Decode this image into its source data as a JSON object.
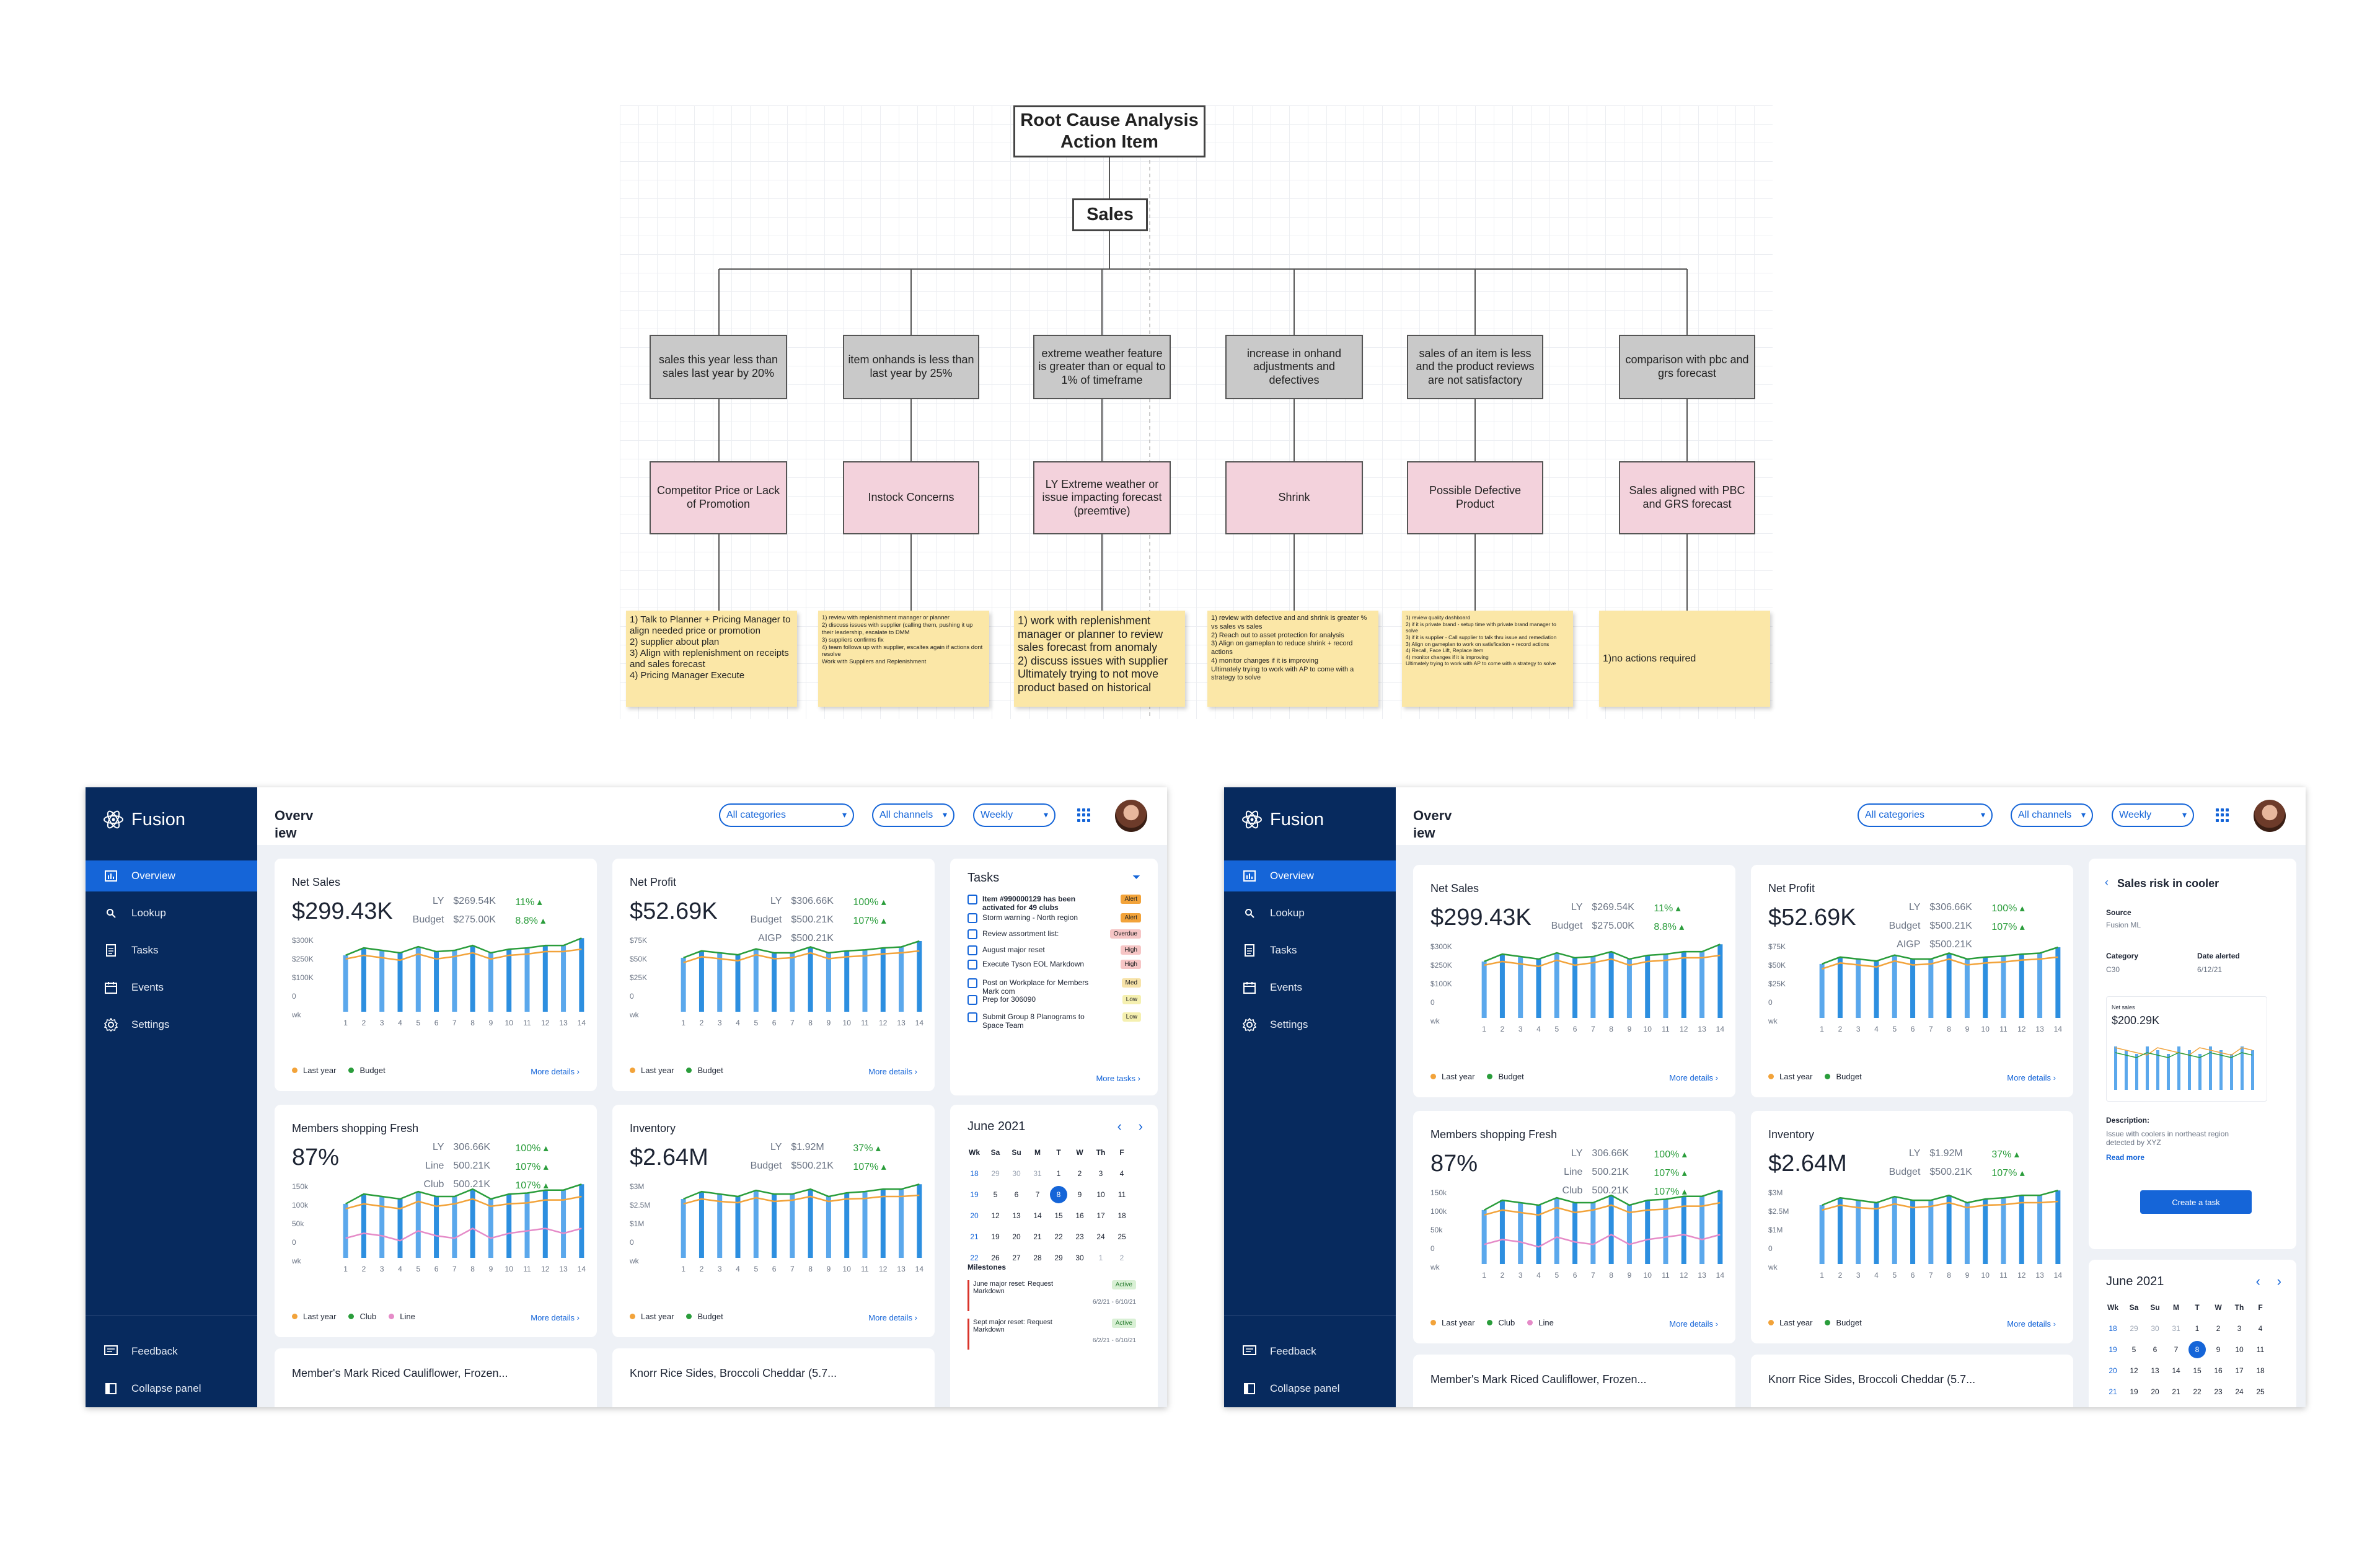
{
  "diagram": {
    "root": "Root Cause Analysis\nAction Item",
    "sales": "Sales",
    "causes": [
      "sales this year less than sales last year by 20%",
      "item onhands is less than last year by 25%",
      "extreme weather feature is greater than or equal to 1% of timeframe",
      "increase in onhand adjustments and defectives",
      "sales of an item is less and the product reviews are not satisfactory",
      "comparison with pbc and grs forecast"
    ],
    "findings": [
      "Competitor Price or Lack of Promotion",
      "Instock Concerns",
      "LY Extreme weather or issue impacting forecast (preemtive)",
      "Shrink",
      "Possible Defective Product",
      "Sales aligned with PBC and GRS forecast"
    ],
    "actions": [
      "1) Talk to Planner + Pricing Manager  to align needed price or promotion\n2) supplier about plan\n3) Align with replenishment on receipts and sales forecast\n4) Pricing Manager Execute",
      "1) review with replenishment manager or planner\n2) discuss issues with supplier (calling them, pushing it up their leadership, escalate to DMM\n3) suppliers confirms fix\n4) team follows up with supplier, escaltes again if actions dont resolve\nWork with Suppliers and Replenishment",
      "1) work with replenishment manager or planner to review sales forecast from anomaly\n2) discuss issues with supplier\nUltimately trying to not move product based on historical",
      "1) review with defective and and shrink is greater % vs sales vs sales\n2) Reach out to asset protection for analysis\n3) Align on gameplan to reduce shrink + record actions\n4) monitor changes if it is improving\nUltimately trying to work with AP to come with a strategy to solve",
      "1) review quality dashboard\n2) if it is private brand - setup time with private brand manager to solve\n3) if it is supplier - Call supplier to talk thru issue and remediation\n3) Align on gameplan to  work on satisfication + record actions\n4) Recall, Face Lift, Replace item\n4) monitor changes if it is improving\nUltimately trying to work with AP to come with a strategy to solve",
      "1)no actions required"
    ]
  },
  "app": {
    "brand": "Fusion",
    "title": "Overv iew",
    "nav": [
      "Overview",
      "Lookup",
      "Tasks",
      "Events",
      "Settings"
    ],
    "feedback": "Feedback",
    "collapse": "Collapse panel",
    "filters": [
      "All categories",
      "All channels",
      "Weekly"
    ],
    "more_details": "More details",
    "net_sales": {
      "title": "Net Sales",
      "value": "$299.43K",
      "lbl1": "LY",
      "val1": "$269.54K",
      "pct1": "11%",
      "lbl2": "Budget",
      "val2": "$275.00K",
      "pct2": "8.8%",
      "yticks": [
        "$300K",
        "$250K",
        "$100K",
        "0"
      ],
      "legend": [
        "Last year",
        "Budget"
      ]
    },
    "net_profit": {
      "title": "Net Profit",
      "value": "$52.69K",
      "lbl1": "LY",
      "val1": "$306.66K",
      "pct1": "100%",
      "lbl2": "Budget",
      "val2": "$500.21K",
      "pct2": "107%",
      "lbl3": "AIGP",
      "val3": "$500.21K",
      "yticks": [
        "$75K",
        "$50K",
        "$25K",
        "0"
      ],
      "legend": [
        "Last year",
        "Budget"
      ]
    },
    "members": {
      "title": "Members shopping Fresh",
      "value": "87%",
      "lbl1": "LY",
      "val1": "306.66K",
      "pct1": "100%",
      "lbl2": "Line",
      "val2": "500.21K",
      "pct2": "107%",
      "lbl3": "Club",
      "val3": "500.21K",
      "pct3": "107%",
      "yticks": [
        "150k",
        "100k",
        "50k",
        "0"
      ],
      "legend": [
        "Last year",
        "Club",
        "Line"
      ]
    },
    "inventory": {
      "title": "Inventory",
      "value": "$2.64M",
      "lbl1": "LY",
      "val1": "$1.92M",
      "pct1": "37%",
      "lbl2": "Budget",
      "val2": "$500.21K",
      "pct2": "107%",
      "yticks": [
        "$3M",
        "$2.5M",
        "$1M",
        "0"
      ],
      "legend": [
        "Last year",
        "Budget"
      ]
    },
    "xunit": "wk",
    "xlabels": [
      "1",
      "2",
      "3",
      "4",
      "5",
      "6",
      "7",
      "8",
      "9",
      "10",
      "11",
      "12",
      "13",
      "14"
    ],
    "products": [
      "Member's Mark Riced Cauliflower, Frozen...",
      "Knorr Rice Sides, Broccoli Cheddar (5.7..."
    ],
    "tasks": {
      "title": "Tasks",
      "more": "More tasks",
      "items": [
        {
          "text": "Item #990000129 has been activated for 49 clubs",
          "tag": "Alert",
          "color": "#f2a33a"
        },
        {
          "text": "Storm warning - North region",
          "tag": "Alert",
          "color": "#f2a33a"
        },
        {
          "text": "Review assortment list:",
          "tag": "Overdue",
          "color": "#f6c5c5"
        },
        {
          "text": "August major reset",
          "tag": "High",
          "color": "#f6c5c5"
        },
        {
          "text": "Execute Tyson EOL Markdown",
          "tag": "High",
          "color": "#f6c5c5"
        },
        {
          "text": "Post on Workplace for Members Mark com",
          "tag": "Med",
          "color": "#f7e3a9"
        },
        {
          "text": "Prep for 306090",
          "tag": "Low",
          "color": "#f5f0b0"
        },
        {
          "text": "Submit Group 8 Planograms to Space Team",
          "tag": "Low",
          "color": "#f5f0b0"
        }
      ]
    },
    "calendar": {
      "month": "June 2021",
      "headers": [
        "Wk",
        "Sa",
        "Su",
        "M",
        "T",
        "W",
        "Th",
        "F"
      ],
      "rows": [
        [
          "18",
          "29",
          "30",
          "31",
          "1",
          "2",
          "3",
          "4"
        ],
        [
          "19",
          "5",
          "6",
          "7",
          "8",
          "9",
          "10",
          "11"
        ],
        [
          "20",
          "12",
          "13",
          "14",
          "15",
          "16",
          "17",
          "18"
        ],
        [
          "21",
          "19",
          "20",
          "21",
          "22",
          "23",
          "24",
          "25"
        ],
        [
          "22",
          "26",
          "27",
          "28",
          "29",
          "30",
          "1",
          "2"
        ]
      ],
      "milestones_title": "Milestones",
      "milestones": [
        {
          "title": "June major reset: Request Markdown",
          "status": "Active",
          "dates": "6/2/21 - 6/10/21"
        },
        {
          "title": "Sept major reset: Request Markdown",
          "status": "Active",
          "dates": "6/2/21 - 6/10/21"
        }
      ]
    },
    "risk": {
      "title": "Sales risk in cooler",
      "source_label": "Source",
      "source_value": "Fusion ML",
      "category_label": "Category",
      "category_value": "C30",
      "date_label": "Date alerted",
      "date_value": "6/12/21",
      "mini_title": "Net sales",
      "mini_value": "$200.29K",
      "desc_label": "Description:",
      "desc_value": "Issue with coolers in northeast region detected by XYZ",
      "read_more": "Read more",
      "button": "Create a task"
    }
  },
  "chart_data": [
    {
      "type": "bar",
      "title": "Net Sales",
      "categories": [
        "1",
        "2",
        "3",
        "4",
        "5",
        "6",
        "7",
        "8",
        "9",
        "10",
        "11",
        "12",
        "13",
        "14"
      ],
      "series": [
        {
          "name": "Budget",
          "values": [
            230,
            260,
            250,
            240,
            265,
            245,
            250,
            270,
            240,
            255,
            260,
            270,
            270,
            300
          ]
        },
        {
          "name": "Last year",
          "values": [
            215,
            230,
            220,
            210,
            235,
            215,
            225,
            240,
            215,
            230,
            235,
            245,
            245,
            255
          ]
        }
      ],
      "ylim": [
        0,
        300
      ]
    },
    {
      "type": "bar",
      "title": "Net Profit",
      "categories": [
        "1",
        "2",
        "3",
        "4",
        "5",
        "6",
        "7",
        "8",
        "9",
        "10",
        "11",
        "12",
        "13",
        "14"
      ],
      "series": [
        {
          "name": "Budget",
          "values": [
            55,
            62,
            60,
            58,
            64,
            60,
            60,
            66,
            60,
            62,
            63,
            65,
            66,
            72
          ]
        },
        {
          "name": "Last year",
          "values": [
            50,
            56,
            54,
            52,
            58,
            54,
            55,
            60,
            54,
            56,
            57,
            59,
            60,
            62
          ]
        }
      ],
      "ylim": [
        0,
        75
      ]
    },
    {
      "type": "bar",
      "title": "Members shopping Fresh",
      "categories": [
        "1",
        "2",
        "3",
        "4",
        "5",
        "6",
        "7",
        "8",
        "9",
        "10",
        "11",
        "12",
        "13",
        "14"
      ],
      "series": [
        {
          "name": "Club",
          "values": [
            110,
            130,
            125,
            120,
            135,
            125,
            125,
            140,
            120,
            130,
            132,
            138,
            138,
            150
          ]
        },
        {
          "name": "Last year",
          "values": [
            100,
            110,
            105,
            100,
            115,
            105,
            110,
            120,
            105,
            110,
            112,
            118,
            118,
            125
          ]
        },
        {
          "name": "Line",
          "values": [
            40,
            50,
            45,
            35,
            55,
            45,
            40,
            60,
            40,
            50,
            55,
            60,
            50,
            60
          ]
        }
      ],
      "ylim": [
        0,
        150
      ]
    },
    {
      "type": "bar",
      "title": "Inventory",
      "categories": [
        "1",
        "2",
        "3",
        "4",
        "5",
        "6",
        "7",
        "8",
        "9",
        "10",
        "11",
        "12",
        "13",
        "14"
      ],
      "series": [
        {
          "name": "Budget",
          "values": [
            2.4,
            2.7,
            2.6,
            2.5,
            2.75,
            2.6,
            2.6,
            2.8,
            2.5,
            2.65,
            2.7,
            2.8,
            2.8,
            3.0
          ]
        },
        {
          "name": "Last year",
          "values": [
            2.2,
            2.4,
            2.3,
            2.25,
            2.45,
            2.3,
            2.35,
            2.5,
            2.3,
            2.4,
            2.42,
            2.5,
            2.5,
            2.55
          ]
        }
      ],
      "ylim": [
        0,
        3
      ]
    }
  ],
  "colors": {
    "primary": "#1565d8",
    "sidebar": "#072a5e",
    "orange": "#f2a33a",
    "green": "#2a9d3b",
    "pink": "#e58bc8",
    "bar": "#2d8fe0"
  }
}
